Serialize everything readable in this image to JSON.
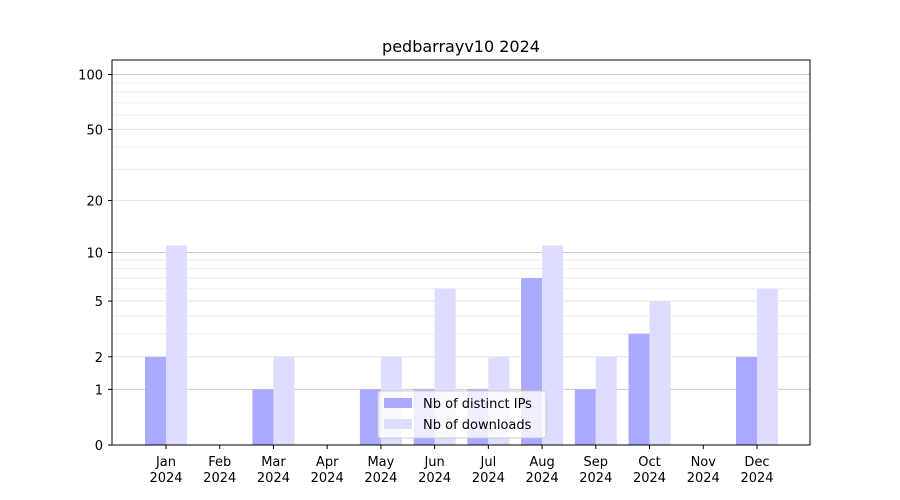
{
  "chart_data": {
    "type": "bar",
    "title": "pedbarrayv10 2024",
    "xlabel": "",
    "ylabel": "",
    "y_scale": "log(1+y)",
    "ylim": [
      0,
      120
    ],
    "grid": true,
    "legend_position": "lower-center",
    "categories": [
      "Jan\n2024",
      "Feb\n2024",
      "Mar\n2024",
      "Apr\n2024",
      "May\n2024",
      "Jun\n2024",
      "Jul\n2024",
      "Aug\n2024",
      "Sep\n2024",
      "Oct\n2024",
      "Nov\n2024",
      "Dec\n2024"
    ],
    "y_ticks": [
      0,
      1,
      2,
      5,
      10,
      20,
      50,
      100
    ],
    "series": [
      {
        "name": "Nb of distinct IPs",
        "color": "#aaaaff",
        "values": [
          2,
          0,
          1,
          0,
          1,
          1,
          1,
          7,
          1,
          3,
          0,
          2
        ]
      },
      {
        "name": "Nb of downloads",
        "color": "#ddddff",
        "values": [
          11,
          0,
          2,
          0,
          2,
          6,
          2,
          11,
          2,
          5,
          0,
          6
        ]
      }
    ]
  }
}
